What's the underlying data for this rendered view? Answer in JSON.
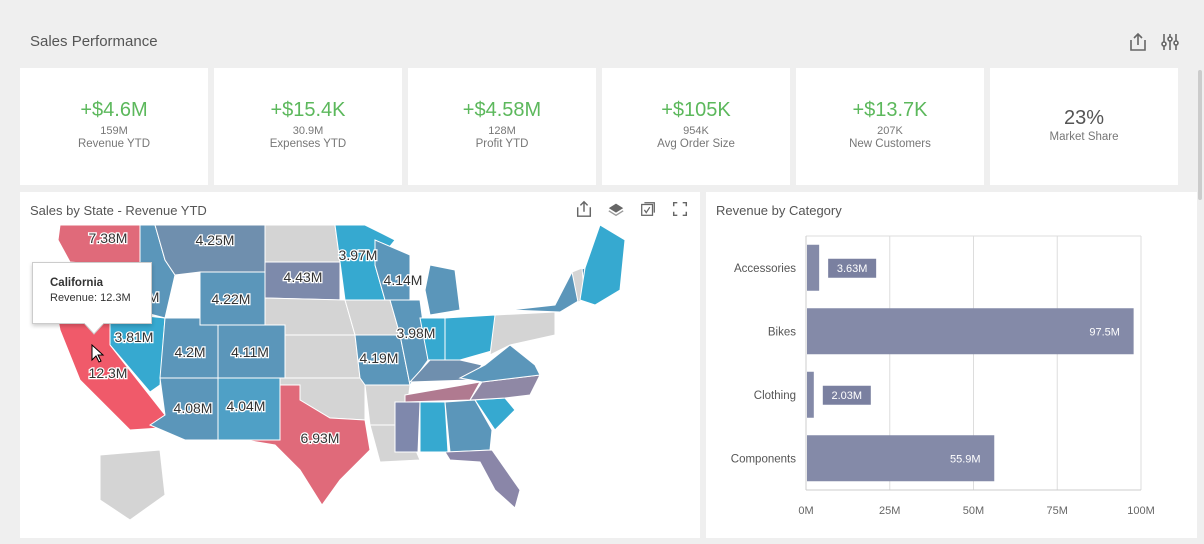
{
  "header": {
    "title": "Sales Performance",
    "icons": [
      "export-icon",
      "filter-sliders-icon"
    ]
  },
  "kpis": [
    {
      "value": "+$4.6M",
      "sub": "159M",
      "label": "Revenue YTD"
    },
    {
      "value": "+$15.4K",
      "sub": "30.9M",
      "label": "Expenses YTD"
    },
    {
      "value": "+$4.58M",
      "sub": "128M",
      "label": "Profit YTD"
    },
    {
      "value": "+$105K",
      "sub": "954K",
      "label": "Avg Order Size"
    },
    {
      "value": "+$13.7K",
      "sub": "207K",
      "label": "New Customers"
    },
    {
      "value": "23%",
      "label": "Market Share"
    }
  ],
  "colors": {
    "positive": "#5cb85c",
    "high": "#e85d6e",
    "mid": "#7d8aab",
    "low": "#36a9d0",
    "nodata": "#d4d4d4",
    "bar": "#848aa8"
  },
  "map": {
    "title": "Sales by State - Revenue YTD",
    "labels": [
      "7.38M",
      "4.25M",
      "3.97M",
      "4.43M",
      "4.14M",
      "4.05M",
      "4.22M",
      "3.81M",
      "3.98M",
      "4.2M",
      "4.11M",
      "4.19M",
      "12.3M",
      "4.08M",
      "4.04M",
      "6.93M"
    ],
    "tooltip": {
      "state": "California",
      "text": "Revenue: 12.3M"
    }
  },
  "chart_data": {
    "type": "bar",
    "orientation": "horizontal",
    "title": "Revenue by Category",
    "categories": [
      "Accessories",
      "Bikes",
      "Clothing",
      "Components"
    ],
    "values": [
      3.63,
      97.5,
      2.03,
      55.9
    ],
    "data_labels": [
      "3.63M",
      "97.5M",
      "2.03M",
      "55.9M"
    ],
    "xlim": [
      0,
      100
    ],
    "xticks": [
      "0M",
      "25M",
      "50M",
      "75M",
      "100M"
    ],
    "grid": true
  }
}
